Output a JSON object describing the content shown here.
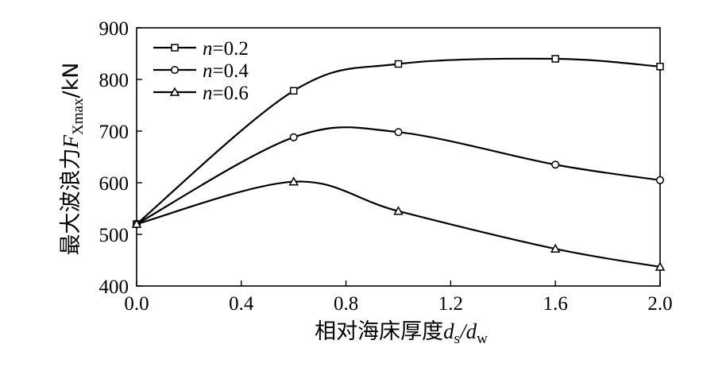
{
  "chart_data": {
    "type": "line",
    "xlabel": {
      "prefix": "相对海床厚度",
      "symbol1": "d",
      "sub1": "s",
      "slash": "/",
      "symbol2": "d",
      "sub2": "w"
    },
    "ylabel": {
      "prefix": "最大波浪力",
      "symbol": "F",
      "sub": "Xmax",
      "suffix": "/kN"
    },
    "xlim": [
      0.0,
      2.0
    ],
    "ylim": [
      400,
      900
    ],
    "x_ticks": [
      "0.0",
      "0.4",
      "0.8",
      "1.2",
      "1.6",
      "2.0"
    ],
    "x_tick_values": [
      0.0,
      0.4,
      0.8,
      1.2,
      1.6,
      2.0
    ],
    "y_ticks": [
      "400",
      "500",
      "600",
      "700",
      "800",
      "900"
    ],
    "y_tick_values": [
      400,
      500,
      600,
      700,
      800,
      900
    ],
    "grid": false,
    "legend_position": "top-left",
    "x": [
      0.0,
      0.6,
      1.0,
      1.6,
      2.0
    ],
    "series": [
      {
        "name_prefix": "n",
        "name_suffix": "=0.2",
        "marker": "square",
        "values": [
          520,
          778,
          830,
          840,
          825
        ]
      },
      {
        "name_prefix": "n",
        "name_suffix": "=0.4",
        "marker": "circle",
        "values": [
          520,
          688,
          698,
          635,
          605
        ]
      },
      {
        "name_prefix": "n",
        "name_suffix": "=0.6",
        "marker": "triangle",
        "values": [
          520,
          602,
          545,
          472,
          437
        ]
      }
    ],
    "line_color": "#000000",
    "marker_fill": "#ffffff"
  }
}
